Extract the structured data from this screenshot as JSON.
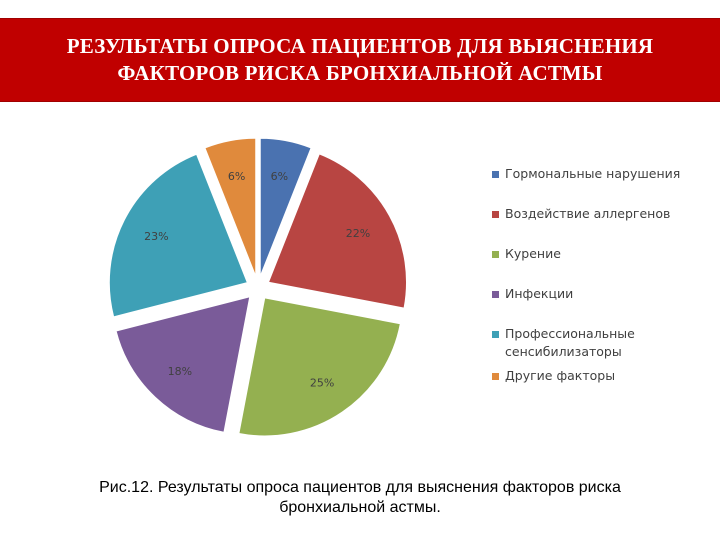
{
  "header": {
    "title": "РЕЗУЛЬТАТЫ ОПРОСА ПАЦИЕНТОВ ДЛЯ ВЫЯСНЕНИЯ\nФАКТОРОВ РИСКА БРОНХИАЛЬНОЙ АСТМЫ"
  },
  "chart_data": {
    "type": "pie",
    "exploded": true,
    "legend_position": "right",
    "slices": [
      {
        "label": "Гормональные нарушения",
        "value": 6,
        "display": "6%",
        "color": "#4a72b0"
      },
      {
        "label": "Воздействие аллергенов",
        "value": 22,
        "display": "22%",
        "color": "#b84542"
      },
      {
        "label": "Курение",
        "value": 25,
        "display": "25%",
        "color": "#94b050"
      },
      {
        "label": "Инфекции",
        "value": 18,
        "display": "18%",
        "color": "#7a5b99"
      },
      {
        "label": "Профессиональные сенсибилизаторы",
        "value": 23,
        "display": "23%",
        "color": "#3ea0b6",
        "legend_lines": [
          "Профессиональные",
          "сенсибилизаторы"
        ]
      },
      {
        "label": "Другие факторы",
        "value": 6,
        "display": "6%",
        "color": "#e08a3c"
      }
    ]
  },
  "caption": {
    "text": "Рис.12. Результаты опроса пациентов для выяснения факторов риска\nбронхиальной астмы."
  }
}
